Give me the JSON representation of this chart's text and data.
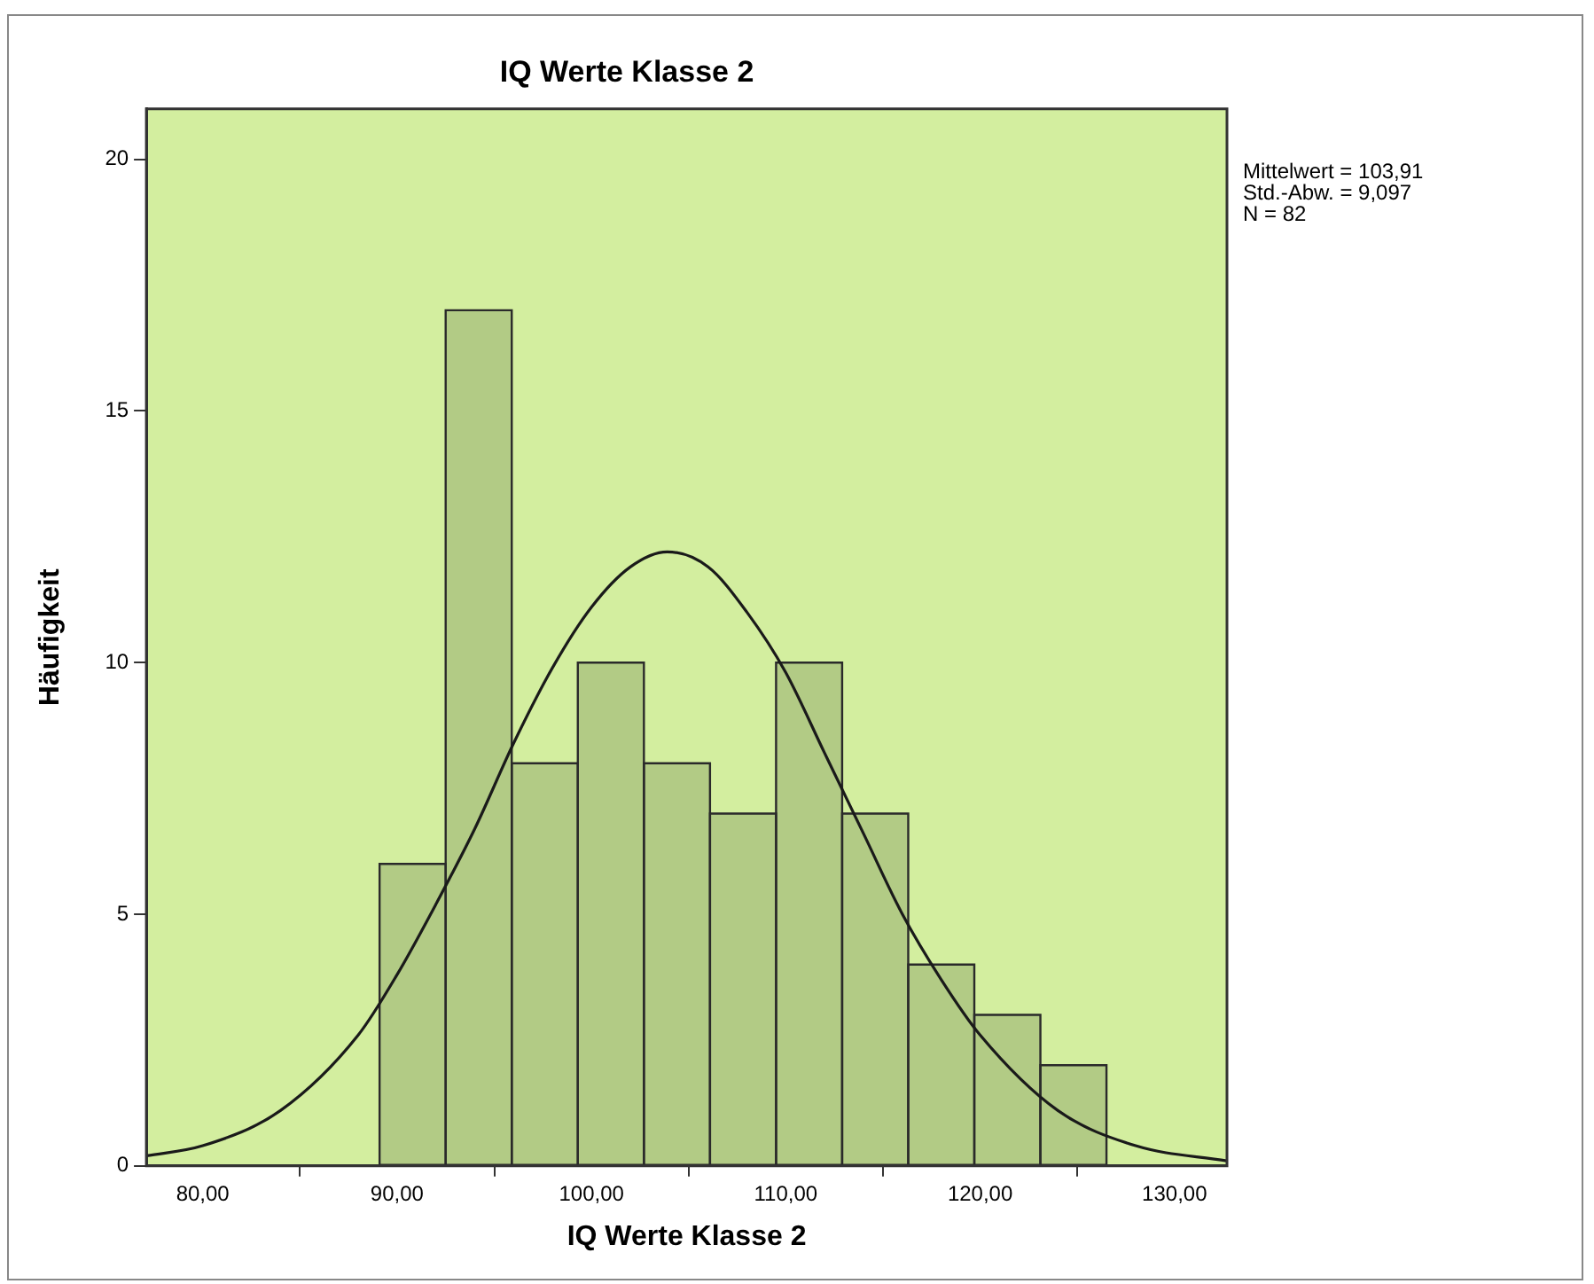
{
  "chart_data": {
    "type": "histogram",
    "title": "IQ Werte Klasse 2",
    "xlabel": "IQ Werte Klasse 2",
    "ylabel": "Häufigkeit",
    "bins": [
      89.1,
      92.5,
      95.9,
      99.3,
      102.7,
      106.1,
      109.5,
      112.9,
      116.3,
      119.7,
      123.1,
      126.5
    ],
    "values": [
      6,
      17,
      8,
      10,
      8,
      7,
      10,
      7,
      4,
      3,
      2
    ],
    "color": "#b2cb85",
    "series": [
      {
        "type": "line",
        "color": "#1a1a1a",
        "x": [
          77.1,
          80,
          84,
          88,
          90,
          92,
          94,
          96,
          98,
          100,
          102,
          103.9,
          106,
          108,
          110,
          112,
          114,
          116,
          118,
          120,
          124,
          128,
          132.7
        ],
        "values": [
          0.2,
          0.4,
          1.1,
          2.6,
          3.8,
          5.2,
          6.7,
          8.4,
          9.9,
          11.1,
          11.9,
          12.2,
          11.9,
          11.0,
          9.8,
          8.2,
          6.6,
          5.0,
          3.7,
          2.6,
          1.1,
          0.4,
          0.1
        ]
      }
    ],
    "xlim": [
      77.1,
      132.7
    ],
    "xticks": [
      {
        "value": 80,
        "label": "80,00"
      },
      {
        "value": 90,
        "label": "90,00"
      },
      {
        "value": 100,
        "label": "100,00"
      },
      {
        "value": 110,
        "label": "110,00"
      },
      {
        "value": 120,
        "label": "120,00"
      },
      {
        "value": 130,
        "label": "130,00"
      }
    ],
    "ylim": [
      0,
      21
    ],
    "yticks": [
      0,
      5,
      10,
      15,
      20
    ],
    "grid": false,
    "legend": false,
    "annotations": [
      "Mittelwert = 103,91",
      "Std.-Abw. = 9,097",
      "N = 82"
    ]
  }
}
